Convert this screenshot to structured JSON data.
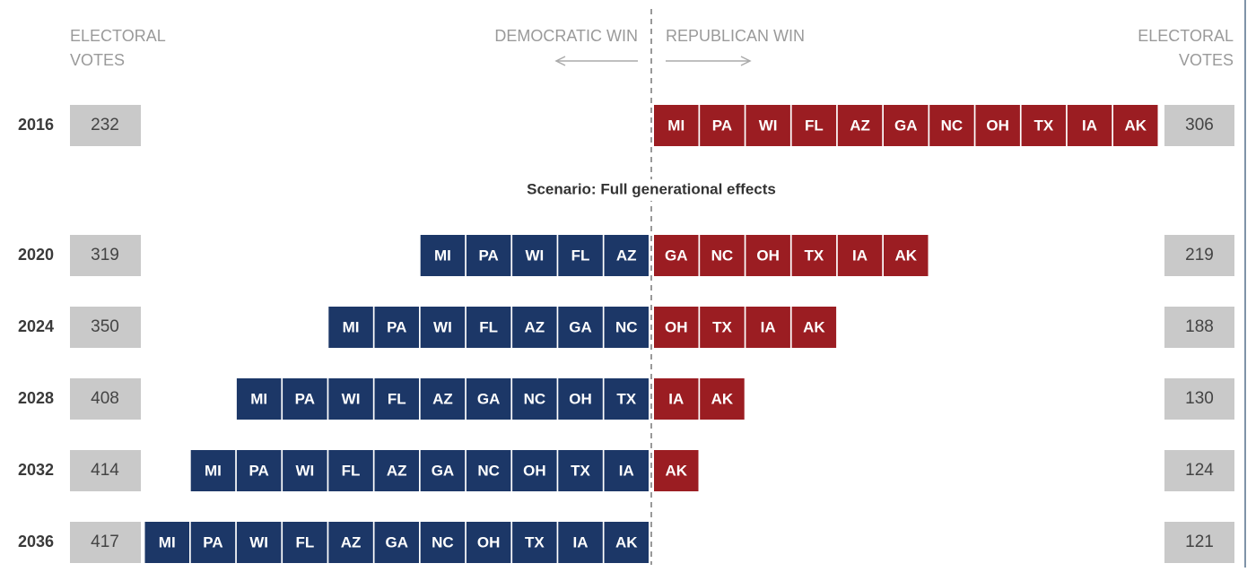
{
  "header": {
    "left_label": [
      "ELECTORAL",
      "VOTES"
    ],
    "right_label": [
      "ELECTORAL",
      "VOTES"
    ],
    "dem_label": "DEMOCRATIC WIN",
    "rep_label": "REPUBLICAN WIN"
  },
  "scenario": "Scenario: Full generational effects",
  "rows": [
    {
      "year": "2016",
      "dem_votes": "232",
      "rep_votes": "306",
      "dem_states": [],
      "rep_states": [
        "MI",
        "PA",
        "WI",
        "FL",
        "AZ",
        "GA",
        "NC",
        "OH",
        "TX",
        "IA",
        "AK"
      ]
    },
    {
      "year": "2020",
      "dem_votes": "319",
      "rep_votes": "219",
      "dem_states": [
        "MI",
        "PA",
        "WI",
        "FL",
        "AZ"
      ],
      "rep_states": [
        "GA",
        "NC",
        "OH",
        "TX",
        "IA",
        "AK"
      ]
    },
    {
      "year": "2024",
      "dem_votes": "350",
      "rep_votes": "188",
      "dem_states": [
        "MI",
        "PA",
        "WI",
        "FL",
        "AZ",
        "GA",
        "NC"
      ],
      "rep_states": [
        "OH",
        "TX",
        "IA",
        "AK"
      ]
    },
    {
      "year": "2028",
      "dem_votes": "408",
      "rep_votes": "130",
      "dem_states": [
        "MI",
        "PA",
        "WI",
        "FL",
        "AZ",
        "GA",
        "NC",
        "OH",
        "TX"
      ],
      "rep_states": [
        "IA",
        "AK"
      ]
    },
    {
      "year": "2032",
      "dem_votes": "414",
      "rep_votes": "124",
      "dem_states": [
        "MI",
        "PA",
        "WI",
        "FL",
        "AZ",
        "GA",
        "NC",
        "OH",
        "TX",
        "IA"
      ],
      "rep_states": [
        "AK"
      ]
    },
    {
      "year": "2036",
      "dem_votes": "417",
      "rep_votes": "121",
      "dem_states": [
        "MI",
        "PA",
        "WI",
        "FL",
        "AZ",
        "GA",
        "NC",
        "OH",
        "TX",
        "IA",
        "AK"
      ],
      "rep_states": []
    }
  ]
}
